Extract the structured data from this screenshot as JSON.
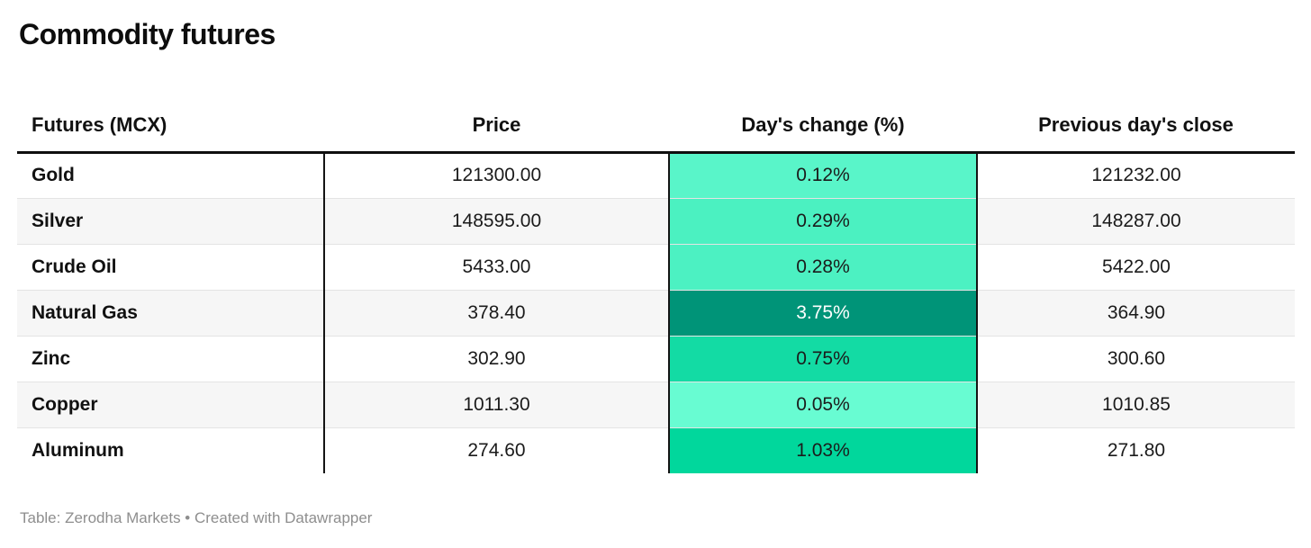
{
  "page": {
    "title": "Commodity futures",
    "footer": "Table: Zerodha Markets • Created with Datawrapper"
  },
  "table": {
    "headers": {
      "futures": "Futures (MCX)",
      "price": "Price",
      "change": "Day's change (%)",
      "prev_close": "Previous day's close"
    },
    "rows": [
      {
        "name": "Gold",
        "price": "121300.00",
        "change": "0.12%",
        "prev_close": "121232.00",
        "change_bg": "#59F5C9",
        "change_fg": "#1b1b1b"
      },
      {
        "name": "Silver",
        "price": "148595.00",
        "change": "0.29%",
        "prev_close": "148287.00",
        "change_bg": "#4BF1C1",
        "change_fg": "#1b1b1b"
      },
      {
        "name": "Crude Oil",
        "price": "5433.00",
        "change": "0.28%",
        "prev_close": "5422.00",
        "change_bg": "#4CF1C2",
        "change_fg": "#1b1b1b"
      },
      {
        "name": "Natural Gas",
        "price": "378.40",
        "change": "3.75%",
        "prev_close": "364.90",
        "change_bg": "#009478",
        "change_fg": "#ffffff"
      },
      {
        "name": "Zinc",
        "price": "302.90",
        "change": "0.75%",
        "prev_close": "300.60",
        "change_bg": "#13DBA4",
        "change_fg": "#1b1b1b"
      },
      {
        "name": "Copper",
        "price": "1011.30",
        "change": "0.05%",
        "prev_close": "1010.85",
        "change_bg": "#68FCD2",
        "change_fg": "#1b1b1b"
      },
      {
        "name": "Aluminum",
        "price": "274.60",
        "change": "1.03%",
        "prev_close": "271.80",
        "change_bg": "#01D79C",
        "change_fg": "#1b1b1b"
      }
    ]
  },
  "colors": {
    "heatmap_scale_light_to_dark": [
      "#68FCD2",
      "#59F5C9",
      "#4BF1C1",
      "#13DBA4",
      "#01D79C",
      "#009478"
    ],
    "header_border": "#0f0f0f",
    "column_divider": "#141414",
    "row_alt_bg": "#f6f6f6",
    "row_separator": "#e4e4e4",
    "footer_text": "#8e8e8e"
  },
  "chart_data": {
    "type": "table",
    "title": "Commodity futures",
    "columns": [
      "Futures (MCX)",
      "Price",
      "Day's change (%)",
      "Previous day's close"
    ],
    "rows": [
      [
        "Gold",
        121300.0,
        0.12,
        121232.0
      ],
      [
        "Silver",
        148595.0,
        0.29,
        148287.0
      ],
      [
        "Crude Oil",
        5433.0,
        0.28,
        5422.0
      ],
      [
        "Natural Gas",
        378.4,
        3.75,
        364.9
      ],
      [
        "Zinc",
        302.9,
        0.75,
        300.6
      ],
      [
        "Copper",
        1011.3,
        0.05,
        1010.85
      ],
      [
        "Aluminum",
        274.6,
        1.03,
        271.8
      ]
    ],
    "heatmap_column": "Day's change (%)",
    "heatmap_note": "cell background shade scales with day's change percent; 3.75% rendered dark teal with white text",
    "source": "Zerodha Markets",
    "tool": "Datawrapper"
  }
}
